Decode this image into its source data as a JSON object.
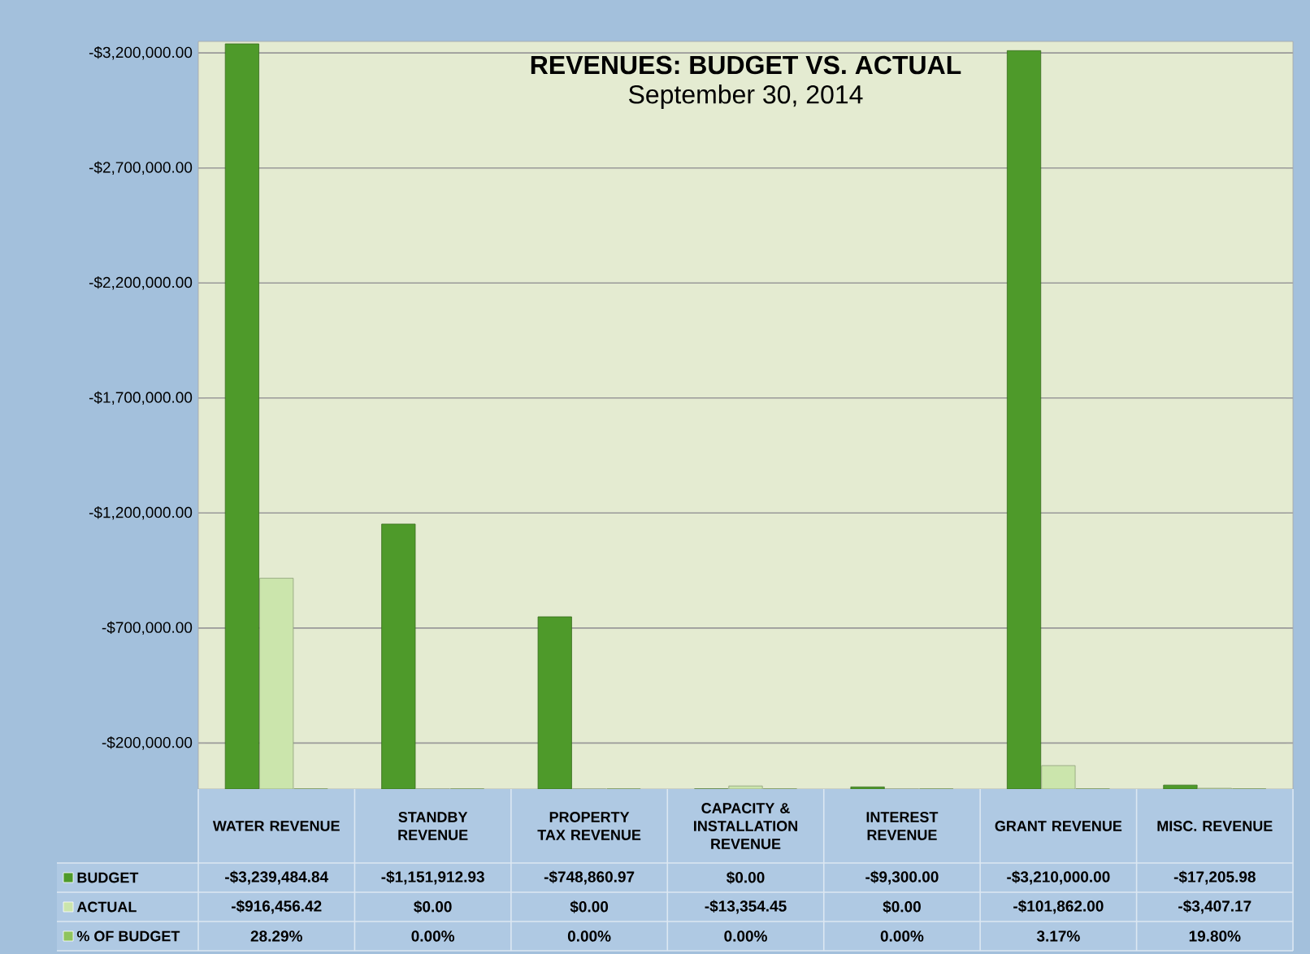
{
  "chart_data": {
    "type": "bar",
    "title": "**REVENUES: BUDGET VS. ACTUAL**",
    "subtitle": "September 30, 2014",
    "categories": [
      "WATER REVENUE",
      "STANDBY REVENUE",
      "PROPERTY TAX REVENUE",
      "CAPACITY & INSTALLATION REVENUE",
      "INTEREST REVENUE",
      "GRANT REVENUE",
      "MISC. REVENUE"
    ],
    "series": [
      {
        "name": "BUDGET",
        "color": "#4e9a2a",
        "values": [
          -3239484.84,
          -1151912.93,
          -748860.97,
          0,
          -9300,
          -3210000,
          -17205.98
        ],
        "value_labels": [
          "-$3,239,484.84",
          "-$1,151,912.93",
          "-$748,860.97",
          "$0.00",
          "-$9,300.00",
          "-$3,210,000.00",
          "-$17,205.98"
        ]
      },
      {
        "name": "ACTUAL",
        "color": "#cbe5ac",
        "values": [
          -916456.42,
          0,
          0,
          -13354.45,
          0,
          -101862,
          -3407.17
        ],
        "value_labels": [
          "-$916,456.42",
          "$0.00",
          "$0.00",
          "-$13,354.45",
          "$0.00",
          "-$101,862.00",
          "-$3,407.17"
        ]
      },
      {
        "name": "% OF BUDGET",
        "color": "#8fc45e",
        "values": [
          0.2829,
          0,
          0,
          0,
          0,
          0.0317,
          0.198
        ],
        "value_labels": [
          "28.29%",
          "0.00%",
          "0.00%",
          "0.00%",
          "0.00%",
          "3.17%",
          "19.80%"
        ]
      }
    ],
    "ylim": [
      1,
      -3250000
    ],
    "yticks": [
      {
        "value": -3200000,
        "label": "-$3,200,000.00"
      },
      {
        "value": -2700000,
        "label": "-$2,700,000.00"
      },
      {
        "value": -2200000,
        "label": "-$2,200,000.00"
      },
      {
        "value": -1700000,
        "label": "-$1,700,000.00"
      },
      {
        "value": -1200000,
        "label": "-$1,200,000.00"
      },
      {
        "value": -700000,
        "label": "-$700,000.00"
      },
      {
        "value": -200000,
        "label": "-$200,000.00"
      }
    ],
    "grid": "y",
    "legend": "bottom left"
  }
}
